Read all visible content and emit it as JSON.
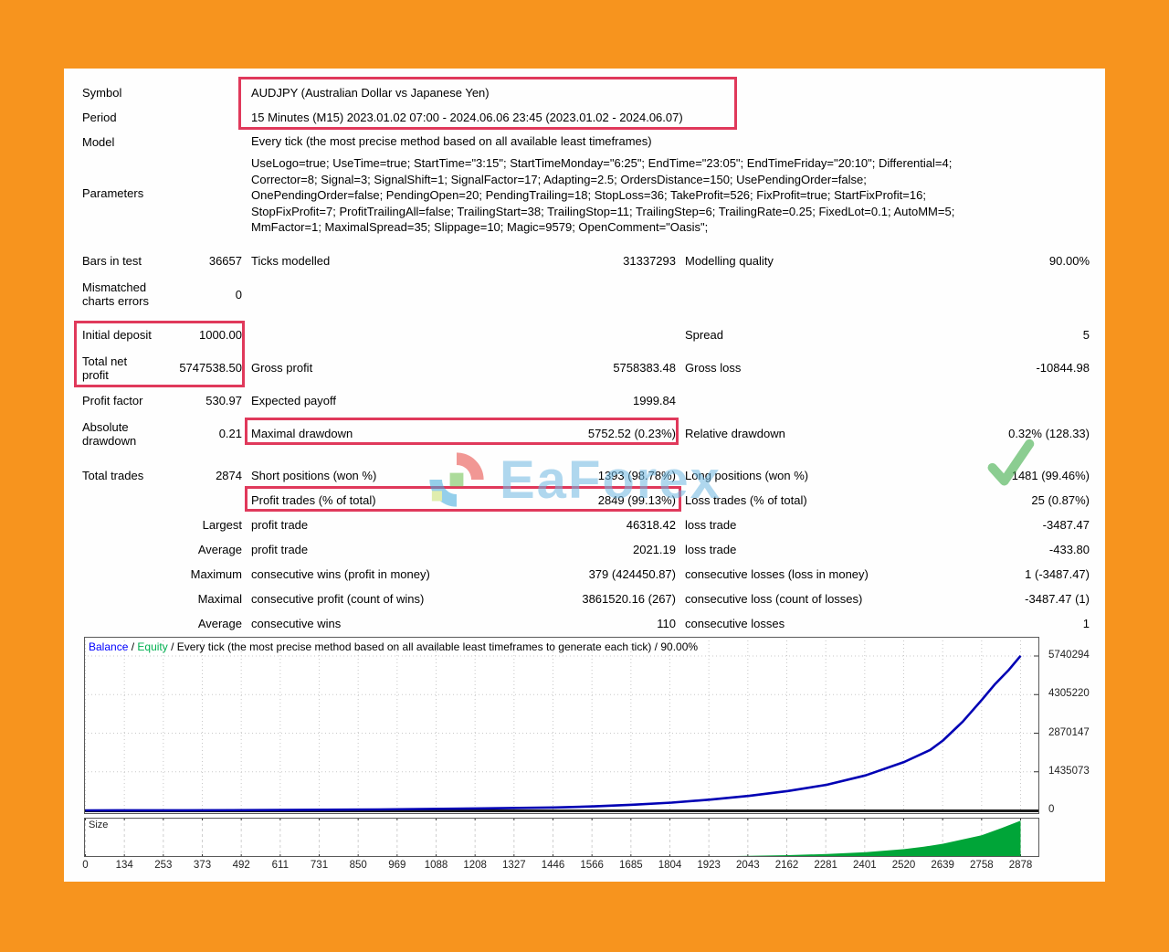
{
  "colors": {
    "frame": "#F7941E",
    "highlight": "#E0395B",
    "balance_line": "#0000B4",
    "equity_label": "#00B050",
    "balance_label": "#0000FF",
    "size_fill": "#00A538",
    "grid": "#C8C8C8"
  },
  "report": {
    "info_rows": [
      {
        "label": "Symbol",
        "value": "AUDJPY (Australian Dollar vs Japanese Yen)",
        "cls": ""
      },
      {
        "label": "Period",
        "value": "15 Minutes (M15) 2023.01.02 07:00 - 2024.06.06 23:45 (2023.01.02 - 2024.06.07)",
        "cls": ""
      },
      {
        "label": "Model",
        "value": "Every tick (the most precise method based on all available least timeframes)",
        "cls": "h26"
      },
      {
        "label": "Parameters",
        "value": "UseLogo=true; UseTime=true; StartTime=\"3:15\"; StartTimeMonday=\"6:25\"; EndTime=\"23:05\"; EndTimeFriday=\"20:10\"; Differential=4;\nCorrector=8; Signal=3; SignalShift=1; SignalFactor=17; Adapting=2.5; OrdersDistance=150; UsePendingOrder=false;\nOnePendingOrder=false; PendingOpen=20; PendingTrailing=18; StopLoss=36; TakeProfit=526; FixProfit=true; StartFixProfit=16;\nStopFixProfit=7; ProfitTrailingAll=false; TrailingStart=38; TrailingStop=11; TrailingStep=6; TrailingRate=0.25; FixedLot=0.1; AutoMM=5;\nMmFactor=1; MaximalSpread=35; Slippage=10; Magic=9579; OpenComment=\"Oasis\";",
        "cls": "params"
      }
    ],
    "stat_rows": [
      {
        "cells": [
          "Bars in test",
          "36657",
          "Ticks modelled",
          "31337293",
          "Modelling quality",
          "90.00%"
        ]
      },
      {
        "cells": [
          "Mismatched\ncharts errors",
          "0",
          "",
          "",
          "",
          ""
        ],
        "tall": true,
        "t46": true
      },
      {
        "gap": 8
      },
      {
        "cells": [
          "Initial deposit",
          "1000.00",
          "",
          "",
          "Spread",
          "5"
        ]
      },
      {
        "cells": [
          "Total net\nprofit",
          "5747538.50",
          "Gross profit",
          "5758383.48",
          "Gross loss",
          "-10844.98"
        ],
        "tall": true
      },
      {
        "cells": [
          "Profit factor",
          "530.97",
          "Expected payoff",
          "1999.84",
          "",
          ""
        ]
      },
      {
        "cells": [
          "Absolute\ndrawdown",
          "0.21",
          "Maximal drawdown",
          "5752.52 (0.23%)",
          "Relative drawdown",
          "0.32% (128.33)"
        ],
        "tall": true
      },
      {
        "gap": 10
      },
      {
        "cells": [
          "Total trades",
          "2874",
          "Short positions (won %)",
          "1393 (98.78%)",
          "Long positions (won %)",
          "1481 (99.46%)"
        ]
      },
      {
        "cells": [
          "",
          "",
          "Profit trades (% of total)",
          "2849 (99.13%)",
          "Loss trades (% of total)",
          "25 (0.87%)"
        ]
      },
      {
        "cells": [
          "",
          "Largest",
          "profit trade",
          "46318.42",
          "loss trade",
          "-3487.47"
        ]
      },
      {
        "cells": [
          "",
          "Average",
          "profit trade",
          "2021.19",
          "loss trade",
          "-433.80"
        ]
      },
      {
        "cells": [
          "",
          "Maximum",
          "consecutive wins (profit in money)",
          "379 (424450.87)",
          "consecutive losses (loss in money)",
          "1 (-3487.47)"
        ]
      },
      {
        "cells": [
          "",
          "Maximal",
          "consecutive profit (count of wins)",
          "3861520.16 (267)",
          "consecutive loss (count of losses)",
          "-3487.47 (1)"
        ]
      },
      {
        "cells": [
          "",
          "Average",
          "consecutive wins",
          "110",
          "consecutive losses",
          "1"
        ]
      }
    ]
  },
  "watermark": {
    "text": "EaForex"
  },
  "chart_data": {
    "type": "line",
    "title": "Balance / Equity / Every tick (the most precise method based on all available least timeframes to generate each tick) / 90.00%",
    "header": {
      "balance": "Balance",
      "sep": " / ",
      "equity": "Equity",
      "rest": "/ Every tick (the most precise method based on all available least timeframes to generate each tick) / 90.00%"
    },
    "xlabel": "",
    "ylabel": "",
    "legend_position": "top-left",
    "grid": true,
    "x_ticks": [
      0,
      134,
      253,
      373,
      492,
      611,
      731,
      850,
      969,
      1088,
      1208,
      1327,
      1446,
      1566,
      1685,
      1804,
      1923,
      2043,
      2162,
      2281,
      2401,
      2520,
      2639,
      2758,
      2878
    ],
    "y_ticks": [
      0,
      1435073,
      2870147,
      4305220,
      5740294
    ],
    "xlim": [
      0,
      2878
    ],
    "ylim": [
      0,
      6450000
    ],
    "series": [
      {
        "name": "Balance",
        "color": "#0000B4",
        "x": [
          0,
          300,
          600,
          900,
          1200,
          1446,
          1566,
          1685,
          1804,
          1923,
          2043,
          2162,
          2281,
          2401,
          2520,
          2600,
          2639,
          2700,
          2758,
          2800,
          2840,
          2878
        ],
        "y": [
          1000,
          5000,
          15000,
          35000,
          70000,
          110000,
          150000,
          210000,
          290000,
          400000,
          540000,
          720000,
          950000,
          1300000,
          1800000,
          2250000,
          2600000,
          3300000,
          4100000,
          4700000,
          5200000,
          5747538
        ]
      }
    ],
    "size_chart": {
      "label": "Size",
      "type": "area",
      "color": "#00A538",
      "x": [
        1950,
        2043,
        2162,
        2281,
        2401,
        2520,
        2580,
        2639,
        2700,
        2758,
        2820,
        2878
      ],
      "y": [
        1,
        2,
        3,
        5,
        8,
        13,
        17,
        22,
        29,
        36,
        48,
        60
      ],
      "ymax": 62
    }
  }
}
